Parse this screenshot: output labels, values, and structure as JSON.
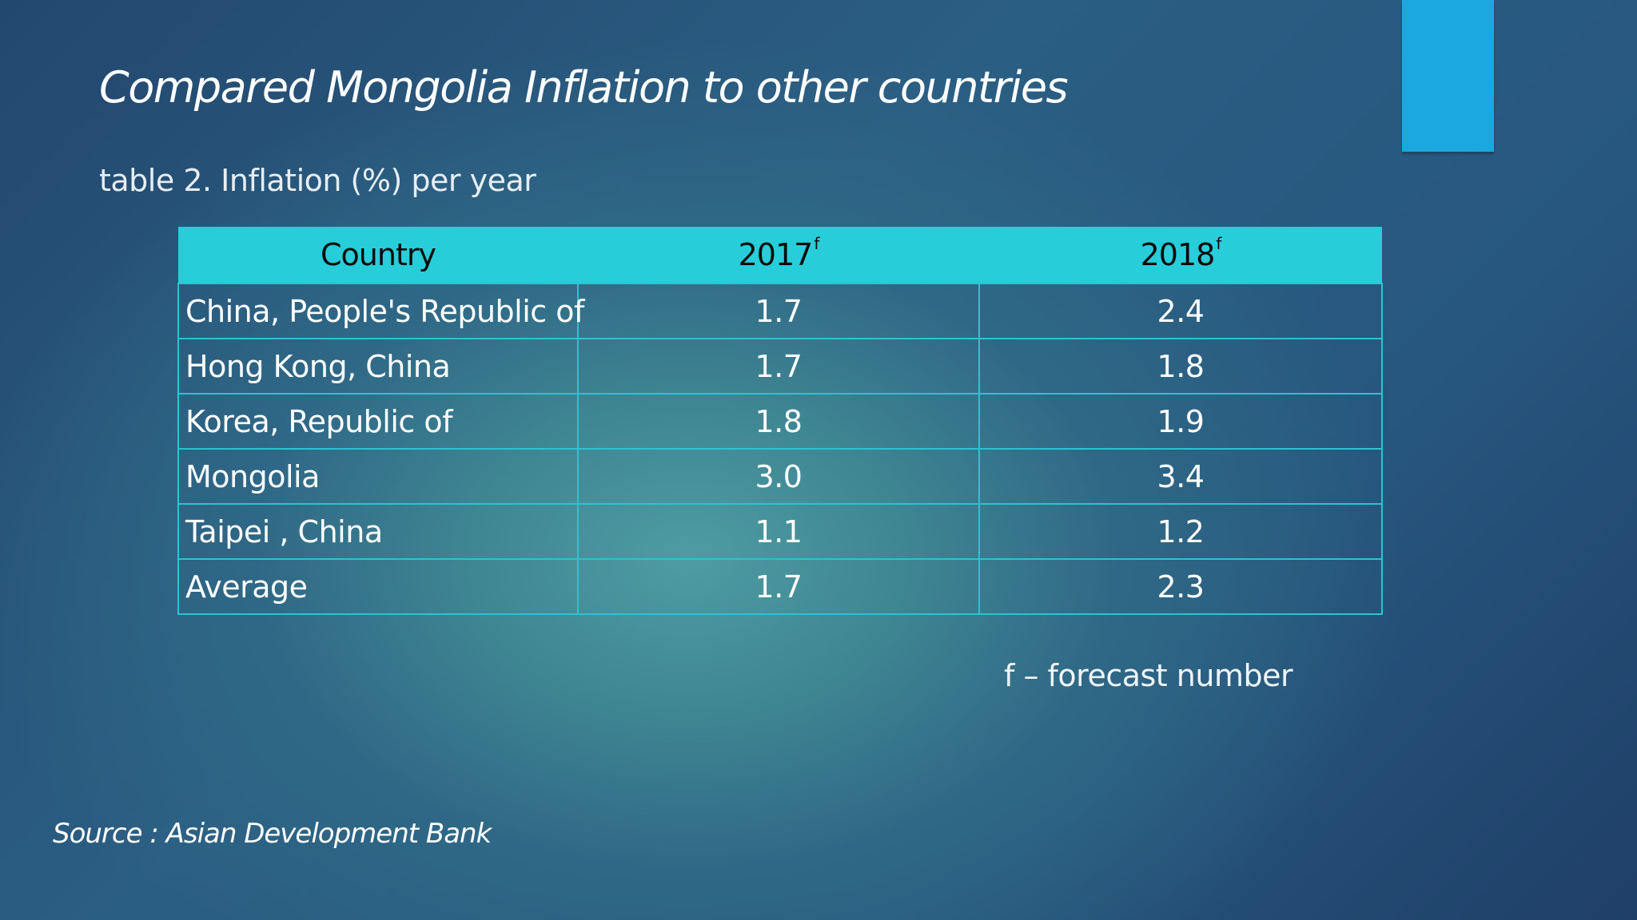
{
  "slide": {
    "title": "Compared Mongolia Inflation to other countries",
    "caption": "table 2. Inflation (%) per year",
    "footnote": "f – forecast number",
    "source": "Source : Asian Development Bank",
    "accent_color": "#1ba8e0",
    "header_color": "#27cdd8"
  },
  "table": {
    "headers": {
      "country": "Country",
      "year1": "2017",
      "year1_mark": "f",
      "year2": "2018",
      "year2_mark": "f"
    },
    "rows": [
      {
        "country": "China, People's Republic of",
        "y2017": "1.7",
        "y2018": "2.4"
      },
      {
        "country": "Hong Kong, China",
        "y2017": "1.7",
        "y2018": "1.8"
      },
      {
        "country": "Korea, Republic of",
        "y2017": "1.8",
        "y2018": "1.9"
      },
      {
        "country": "Mongolia",
        "y2017": "3.0",
        "y2018": "3.4"
      },
      {
        "country": "Taipei , China",
        "y2017": "1.1",
        "y2018": "1.2"
      },
      {
        "country": "Average",
        "y2017": "1.7",
        "y2018": "2.3"
      }
    ]
  }
}
